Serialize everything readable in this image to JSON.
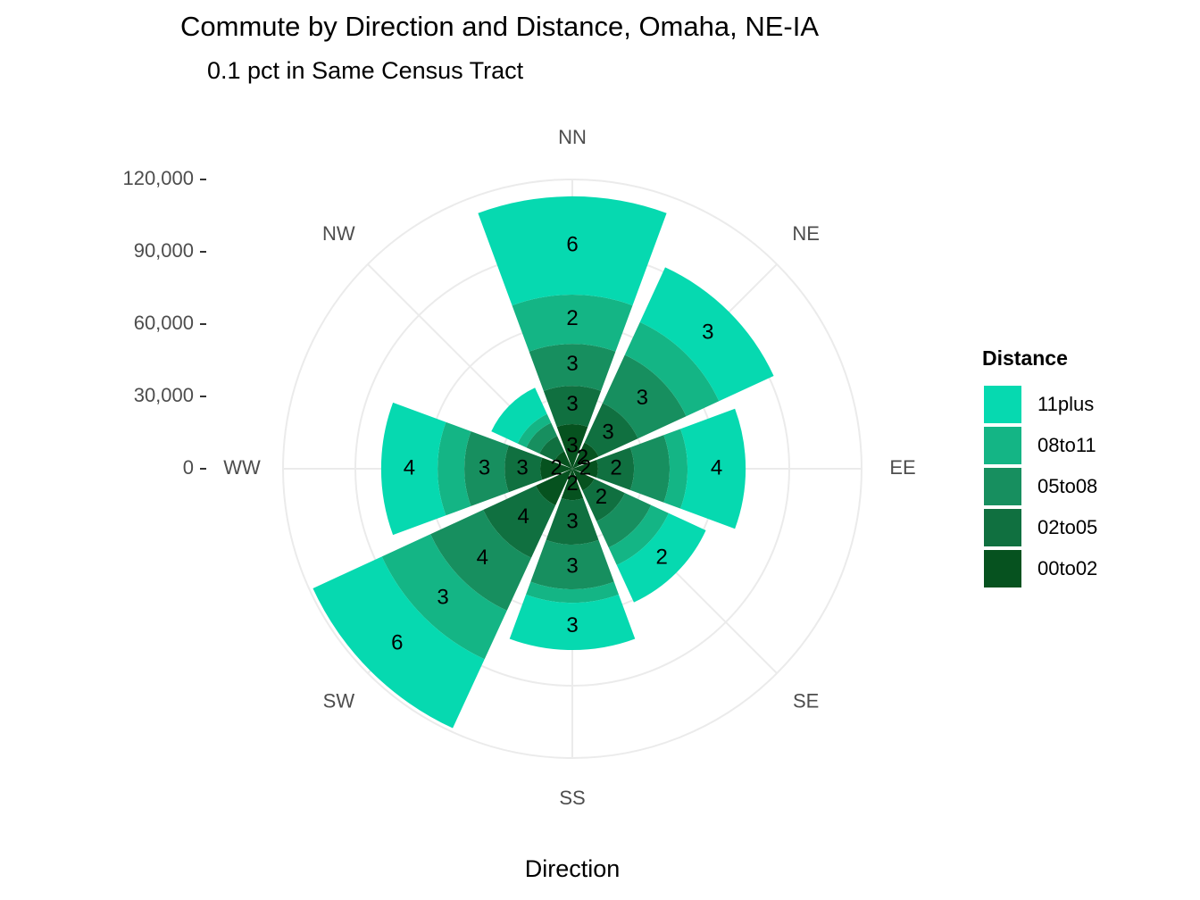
{
  "chart_data": {
    "type": "polar_stacked_bar",
    "title": "Commute by Direction and Distance, Omaha, NE-IA",
    "subtitle": "0.1 pct in Same Census Tract",
    "x_label": "Direction",
    "legend_title": "Distance",
    "categories": [
      "NN",
      "NE",
      "EE",
      "SE",
      "SS",
      "SW",
      "WW",
      "NW"
    ],
    "series": [
      {
        "name": "00to02",
        "color": "#06521f",
        "values": [
          18500,
          12000,
          10700,
          10000,
          13000,
          16700,
          13300,
          8000
        ],
        "labels": [
          "3",
          "2",
          "2",
          null,
          "2",
          null,
          "2",
          null
        ]
      },
      {
        "name": "02to05",
        "color": "#107040",
        "values": [
          15900,
          18000,
          14900,
          14000,
          18500,
          24000,
          14800,
          7000
        ],
        "labels": [
          "3",
          "3",
          "2",
          "2",
          "3",
          "4",
          "3",
          null
        ]
      },
      {
        "name": "05to08",
        "color": "#178f5f",
        "values": [
          17400,
          22000,
          14800,
          12000,
          18500,
          24100,
          16700,
          6000
        ],
        "labels": [
          "3",
          "3",
          null,
          null,
          "3",
          "4",
          "3",
          null
        ]
      },
      {
        "name": "08to11",
        "color": "#14b585",
        "values": [
          20400,
          15000,
          7400,
          8000,
          5600,
          22200,
          11100,
          4000
        ],
        "labels": [
          "2",
          null,
          null,
          null,
          null,
          "3",
          null,
          null
        ]
      },
      {
        "name": "11plus",
        "color": "#06d9b0",
        "values": [
          40800,
          25000,
          24100,
          17000,
          19600,
          31500,
          23400,
          12000
        ],
        "labels": [
          "6",
          "3",
          "4",
          "2",
          "3",
          "6",
          "4",
          null
        ]
      }
    ],
    "ylim": [
      0,
      120000
    ],
    "yticks": [
      0,
      {
        "value": 30000,
        "label": "30,000"
      },
      {
        "value": 60000,
        "label": "60,000"
      },
      {
        "value": 90000,
        "label": "90,000"
      },
      {
        "value": 120000,
        "label": "120,000"
      }
    ],
    "grid": true
  }
}
